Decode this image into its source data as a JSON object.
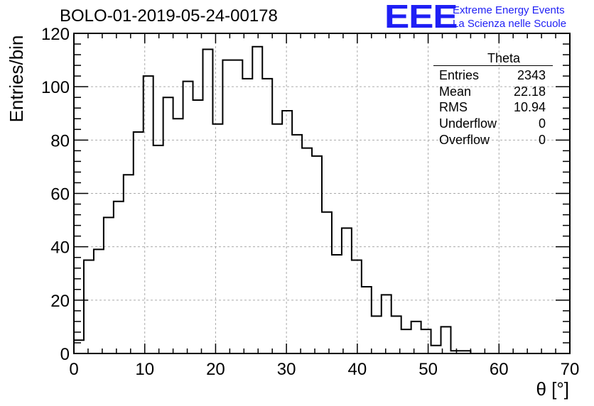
{
  "title": "BOLO-01-2019-05-24-00178",
  "logo": {
    "mark": "EEE",
    "line1": "Extreme Energy Events",
    "line2": "La Scienza nelle Scuole",
    "color": "#1f1ff5"
  },
  "stats_box": {
    "title": "Theta",
    "rows": [
      {
        "label": "Entries",
        "value": "2343"
      },
      {
        "label": "Mean",
        "value": "22.18"
      },
      {
        "label": "RMS",
        "value": "10.94"
      },
      {
        "label": "Underflow",
        "value": "0"
      },
      {
        "label": "Overflow",
        "value": "0"
      }
    ]
  },
  "chart_data": {
    "type": "bar",
    "histogram": true,
    "bin_width": 1.4,
    "x_start": 0,
    "values": [
      5,
      35,
      39,
      51,
      57,
      67,
      83,
      104,
      78,
      96,
      88,
      102,
      95,
      114,
      86,
      110,
      110,
      103,
      115,
      103,
      86,
      91,
      82,
      77,
      74,
      53,
      37,
      47,
      35,
      25,
      14,
      22,
      14,
      9,
      12,
      9,
      3,
      10,
      1,
      1
    ],
    "xlabel": "θ [°]",
    "ylabel": "Entries/bin",
    "xlim": [
      0,
      70
    ],
    "ylim": [
      0,
      120
    ],
    "xticks": [
      0,
      10,
      20,
      30,
      40,
      50,
      60,
      70
    ],
    "yticks": [
      0,
      20,
      40,
      60,
      80,
      100,
      120
    ],
    "grid": true,
    "legend": "top-right stats box"
  }
}
